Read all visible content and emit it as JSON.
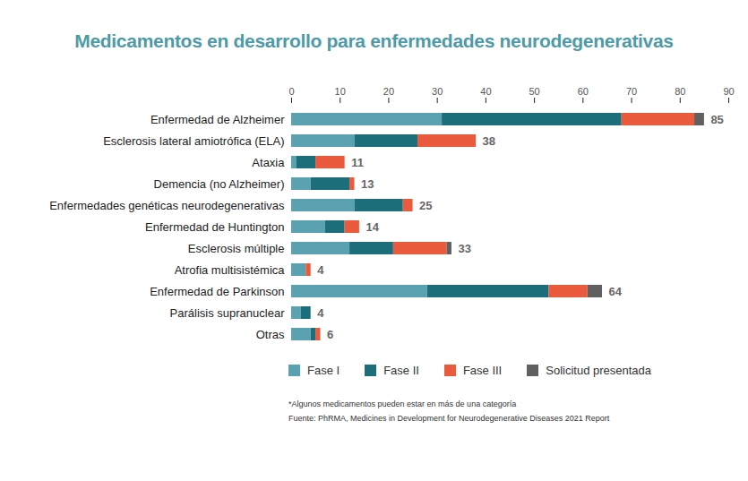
{
  "chart_data": {
    "type": "bar",
    "title": "Medicamentos en desarrollo para enfermedades neurodegenerativas",
    "orientation": "horizontal",
    "stacked": true,
    "grid": false,
    "legend": "bottom",
    "categories": [
      "Enfermedad de Alzheimer",
      "Esclerosis lateral amiotrófica (ELA)",
      "Ataxia",
      "Demencia (no Alzheimer)",
      "Enfermedades genéticas neurodegenerativas",
      "Enfermedad de Huntington",
      "Esclerosis múltiple",
      "Atrofia multisistémica",
      "Enfermedad de Parkinson",
      "Parálisis supranuclear",
      "Otras"
    ],
    "series": [
      {
        "name": "Fase I",
        "color": "#5aa2b0",
        "values": [
          31,
          13,
          1,
          4,
          13,
          7,
          12,
          3,
          28,
          2,
          4
        ]
      },
      {
        "name": "Fase II",
        "color": "#1d6e7b",
        "values": [
          37,
          13,
          4,
          8,
          10,
          4,
          9,
          0,
          25,
          2,
          1
        ]
      },
      {
        "name": "Fase III",
        "color": "#ea5a3c",
        "values": [
          15,
          12,
          6,
          1,
          2,
          3,
          11,
          1,
          8,
          0,
          1
        ]
      },
      {
        "name": "Solicitud presentada",
        "color": "#606060",
        "values": [
          2,
          0,
          0,
          0,
          0,
          0,
          1,
          0,
          3,
          0,
          0
        ]
      }
    ],
    "totals": [
      85,
      38,
      11,
      13,
      25,
      14,
      33,
      4,
      64,
      4,
      6
    ],
    "xlim": [
      0,
      90
    ],
    "xticks": [
      0,
      10,
      20,
      30,
      40,
      50,
      60,
      70,
      80,
      90
    ],
    "note": "*Algunos medicamentos pueden estar en más de una categoría",
    "source": "Fuente: PhRMA, Medicines in Development for Neurodegenerative Diseases 2021 Report"
  }
}
